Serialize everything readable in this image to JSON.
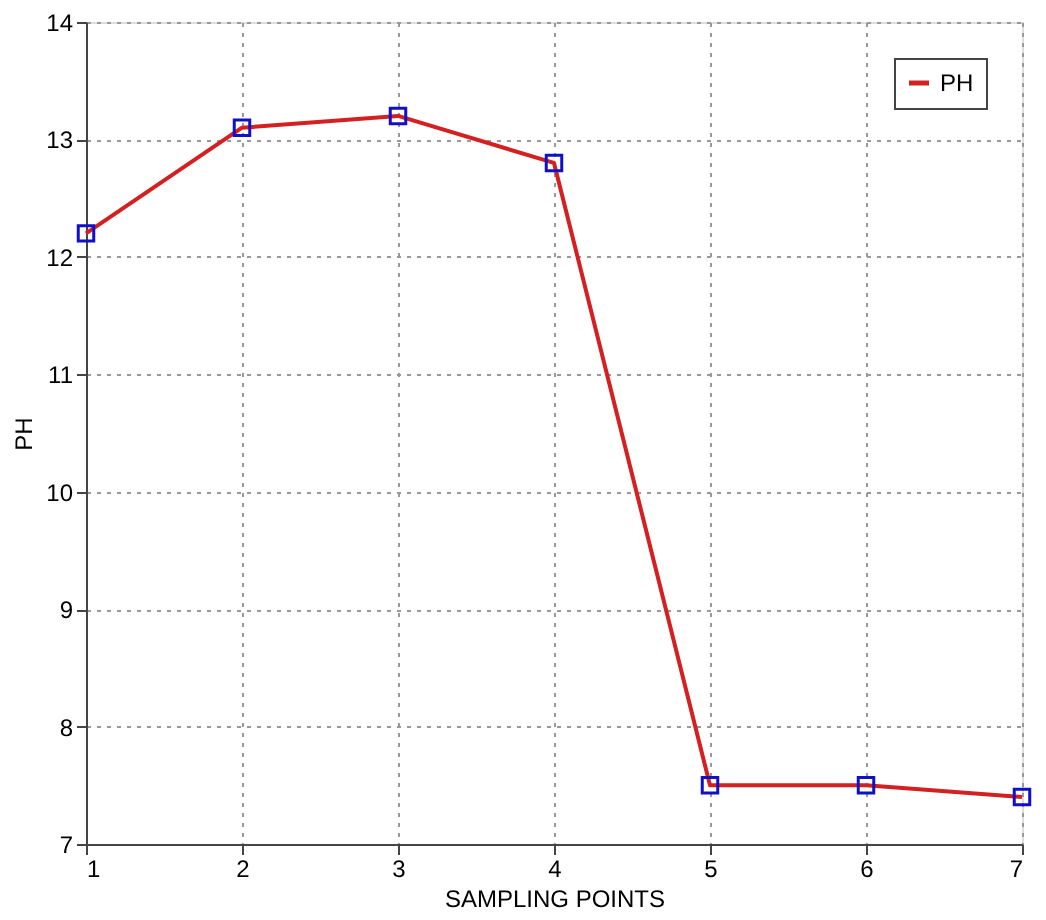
{
  "chart_data": {
    "type": "line",
    "xlabel": "SAMPLING POINTS",
    "ylabel": "PH",
    "x": [
      1,
      2,
      3,
      4,
      5,
      6,
      7
    ],
    "series": [
      {
        "name": "PH",
        "color": "#d42020",
        "values": [
          12.2,
          13.1,
          13.2,
          12.8,
          7.5,
          7.5,
          7.4
        ]
      }
    ],
    "xlim": [
      1,
      7
    ],
    "xticks": [
      1,
      2,
      3,
      4,
      5,
      6,
      7
    ],
    "ylim": [
      7,
      14
    ],
    "yticks": [
      7,
      8,
      9,
      10,
      11,
      12,
      13,
      14
    ],
    "grid": true,
    "legend": "top right",
    "marker": "square",
    "line_style": "solid"
  }
}
